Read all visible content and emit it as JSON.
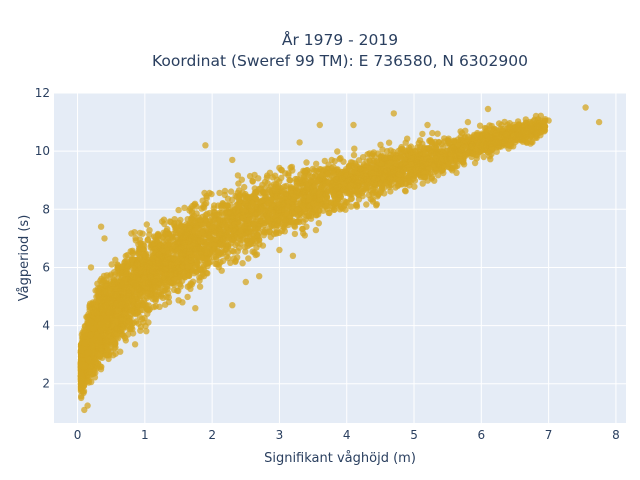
{
  "chart_data": {
    "type": "scatter",
    "title_line1": "År 1979 - 2019",
    "title_line2": "Koordinat (Sweref 99 TM): E 736580, N 6302900",
    "xlabel": "Signifikant våghöjd (m)",
    "ylabel": "Vågperiod (s)",
    "xlim": [
      -0.35,
      8.15
    ],
    "ylim": [
      0.65,
      12.0
    ],
    "x_ticks": [
      0,
      1,
      2,
      3,
      4,
      5,
      6,
      7,
      8
    ],
    "y_ticks": [
      2,
      4,
      6,
      8,
      10,
      12
    ],
    "grid": true,
    "marker_color": "#d4a520",
    "plot_bg": "#e5ecf6",
    "series": [
      {
        "envelope": [
          {
            "x": 0.05,
            "low": 1.4,
            "high": 3.6
          },
          {
            "x": 0.15,
            "low": 1.5,
            "high": 5.0
          },
          {
            "x": 0.3,
            "low": 1.9,
            "high": 5.9
          },
          {
            "x": 0.5,
            "low": 2.4,
            "high": 6.6
          },
          {
            "x": 0.75,
            "low": 3.0,
            "high": 7.3
          },
          {
            "x": 1.0,
            "low": 3.6,
            "high": 7.8
          },
          {
            "x": 1.5,
            "low": 4.5,
            "high": 8.5
          },
          {
            "x": 2.0,
            "low": 5.3,
            "high": 9.0
          },
          {
            "x": 2.5,
            "low": 6.0,
            "high": 9.4
          },
          {
            "x": 3.0,
            "low": 6.6,
            "high": 9.7
          },
          {
            "x": 3.5,
            "low": 7.1,
            "high": 10.0
          },
          {
            "x": 4.0,
            "low": 7.6,
            "high": 10.2
          },
          {
            "x": 4.5,
            "low": 8.0,
            "high": 10.4
          },
          {
            "x": 5.0,
            "low": 8.5,
            "high": 10.6
          },
          {
            "x": 5.5,
            "low": 9.0,
            "high": 10.8
          },
          {
            "x": 6.0,
            "low": 9.5,
            "high": 11.0
          },
          {
            "x": 6.5,
            "low": 10.0,
            "high": 11.2
          },
          {
            "x": 7.0,
            "low": 10.4,
            "high": 11.4
          }
        ],
        "outliers": [
          [
            0.1,
            1.1
          ],
          [
            0.15,
            1.25
          ],
          [
            1.75,
            4.6
          ],
          [
            2.3,
            4.7
          ],
          [
            2.7,
            5.7
          ],
          [
            2.5,
            5.5
          ],
          [
            3.0,
            6.6
          ],
          [
            3.2,
            6.4
          ],
          [
            0.2,
            6.0
          ],
          [
            0.4,
            7.0
          ],
          [
            0.43,
            4.9
          ],
          [
            0.35,
            7.4
          ],
          [
            1.9,
            10.2
          ],
          [
            2.3,
            9.7
          ],
          [
            3.3,
            10.3
          ],
          [
            3.6,
            10.9
          ],
          [
            4.1,
            10.9
          ],
          [
            4.7,
            11.3
          ],
          [
            5.2,
            10.9
          ],
          [
            5.35,
            10.6
          ],
          [
            5.8,
            11.0
          ],
          [
            6.1,
            11.45
          ],
          [
            6.3,
            10.9
          ],
          [
            6.5,
            10.3
          ],
          [
            6.75,
            10.8
          ],
          [
            6.95,
            11.1
          ],
          [
            7.0,
            11.05
          ],
          [
            7.55,
            11.5
          ],
          [
            7.75,
            11.0
          ],
          [
            6.15,
            9.9
          ],
          [
            5.95,
            10.3
          ],
          [
            4.8,
            9.0
          ],
          [
            4.2,
            9.4
          ],
          [
            3.4,
            7.4
          ],
          [
            3.9,
            8.0
          ]
        ]
      }
    ]
  }
}
